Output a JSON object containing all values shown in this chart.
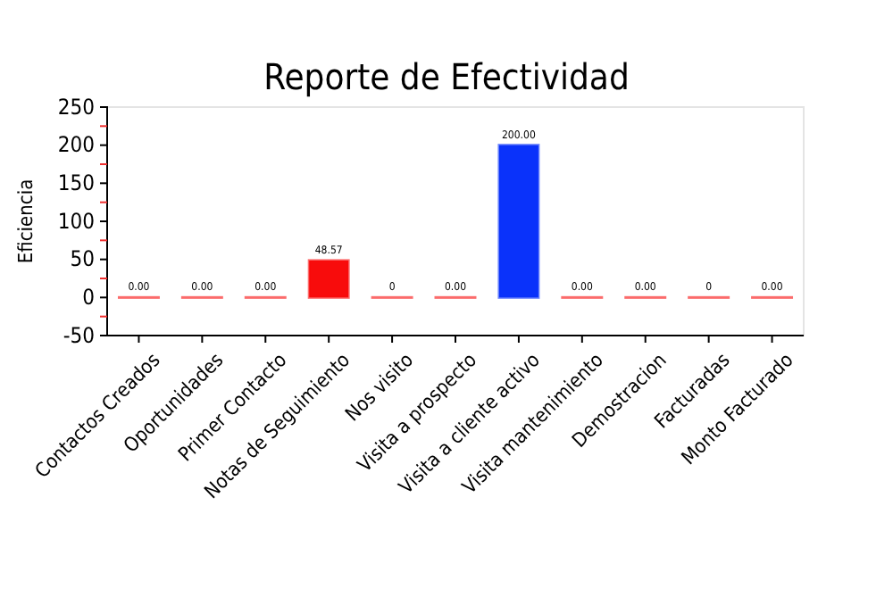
{
  "chart_data": {
    "type": "bar",
    "title": "Reporte de Efectividad",
    "ylabel": "Eficiencia",
    "categories": [
      "Contactos Creados",
      "Oportunidades",
      "Primer Contacto",
      "Notas de Seguimiento",
      "Nos visito",
      "Visita a prospecto",
      "Visita a cliente activo",
      "Visita mantenimiento",
      "Demostracion",
      "Facturadas",
      "Monto Facturado"
    ],
    "values": [
      0,
      0,
      0,
      48.57,
      0,
      0,
      200,
      0,
      0,
      0,
      0
    ],
    "colors": [
      "#f80c0c",
      "#f80c0c",
      "#f80c0c",
      "#f80c0c",
      "#f80c0c",
      "#f80c0c",
      "#0a32fa",
      "#f80c0c",
      "#f80c0c",
      "#f80c0c",
      "#f80c0c"
    ],
    "value_labels": [
      "0.00",
      "0.00",
      "0.00",
      "48.57",
      "0",
      "0.00",
      "200.00",
      "0.00",
      "0.00",
      "0",
      "0.00"
    ],
    "ylim": [
      -50,
      250
    ],
    "yticks": [
      -50,
      {
        "value": -25,
        "label": null
      },
      0,
      {
        "value": 25,
        "label": null
      },
      50,
      {
        "value": 75,
        "label": null
      },
      100,
      {
        "value": 125,
        "label": null
      },
      150,
      {
        "value": 175,
        "label": null
      },
      200,
      {
        "value": 225,
        "label": null
      },
      250
    ],
    "grid": false
  }
}
